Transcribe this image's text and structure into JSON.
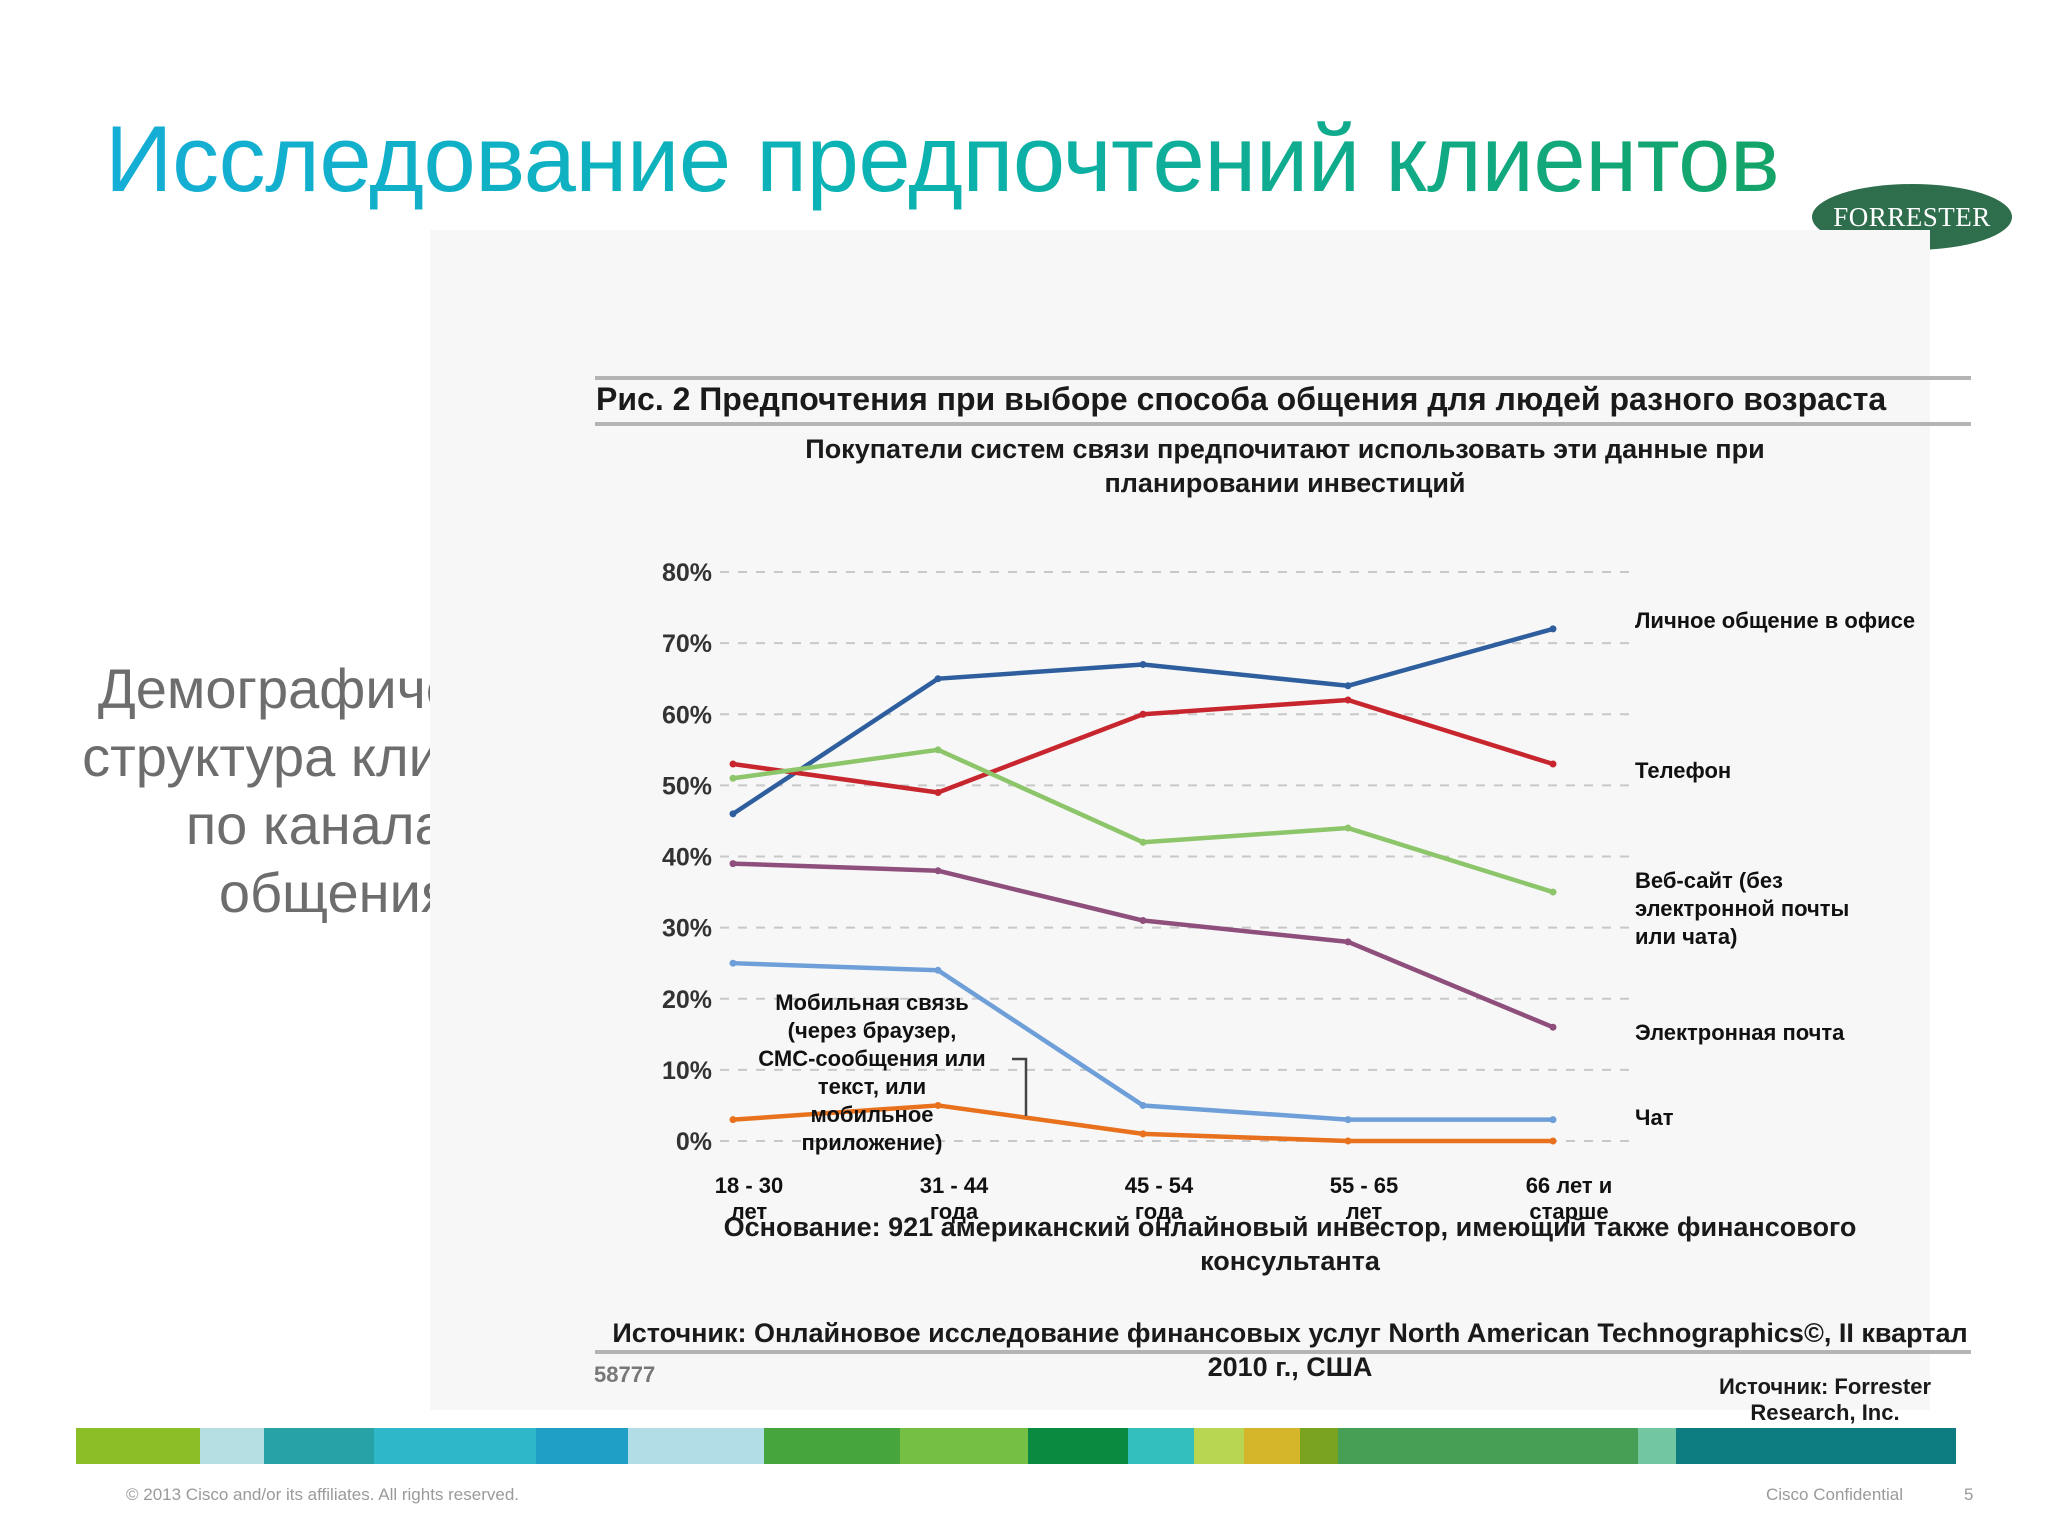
{
  "slide": {
    "title": "Исследование предпочтений клиентов",
    "side_caption": "Демографическая структура клиентов по каналам общения",
    "logo_text": "FORRESTER",
    "footer_copyright": "© 2013 Cisco and/or its affiliates. All rights reserved.",
    "footer_confidential": "Cisco Confidential",
    "page_number": "5"
  },
  "figure": {
    "title": "Рис. 2 Предпочтения при выборе способа общения для людей разного возраста",
    "subtitle": "Покупатели систем связи предпочитают использовать эти данные при планировании инвестиций",
    "basis": "Основание: 921 американский онлайновый инвестор, имеющий также финансового консультанта",
    "source": "Источник: Онлайновое исследование финансовых услуг North American Technographics©, II квартал 2010 г., США",
    "id": "58777",
    "credit": "Источник: Forrester Research, Inc."
  },
  "chart_data": {
    "type": "line",
    "x_categories": [
      [
        "18 - 30",
        "лет"
      ],
      [
        "31 - 44",
        "года"
      ],
      [
        "45 - 54",
        "года"
      ],
      [
        "55 - 65",
        "лет"
      ],
      [
        "66 лет и",
        "старше"
      ]
    ],
    "ylim": [
      0,
      80
    ],
    "y_ticks": [
      "0%",
      "10%",
      "20%",
      "30%",
      "40%",
      "50%",
      "60%",
      "70%",
      "80%"
    ],
    "grid": "dashed horizontal",
    "series": [
      {
        "name": "Личное общение в офисе",
        "label_lines": [
          "Личное общение в офисе"
        ],
        "color": "#2e5e9e",
        "values": [
          46,
          65,
          67,
          64,
          72
        ]
      },
      {
        "name": "Телефон",
        "label_lines": [
          "Телефон"
        ],
        "color": "#c8262e",
        "values": [
          53,
          49,
          60,
          62,
          53
        ]
      },
      {
        "name": "Веб-сайт (без электронной почты или чата)",
        "label_lines": [
          "Веб-сайт (без",
          "электронной почты",
          "или чата)"
        ],
        "color": "#8cc56a",
        "values": [
          51,
          55,
          42,
          44,
          35
        ]
      },
      {
        "name": "Электронная почта",
        "label_lines": [
          "Электронная почта"
        ],
        "color": "#8e4f7c",
        "values": [
          39,
          38,
          31,
          28,
          16
        ]
      },
      {
        "name": "Чат",
        "label_lines": [
          "Чат"
        ],
        "color": "#6e9fd8",
        "values": [
          25,
          24,
          5,
          3,
          3
        ]
      },
      {
        "name": "Мобильная связь (через браузер, СМС-сообщения или текст, или мобильное приложение)",
        "label_lines": [
          "Мобильная связь",
          "(через браузер,",
          "СМС-сообщения или",
          "текст, или",
          "мобильное",
          "приложение)"
        ],
        "color": "#e8711e",
        "values": [
          3,
          5,
          1,
          0,
          0
        ]
      }
    ]
  },
  "colors": {
    "band": [
      "#8cbf26",
      "#b6dfe3",
      "#27a3a8",
      "#2eb7c8",
      "#1f9ec6",
      "#b0dde6",
      "#46a53c",
      "#74bf44",
      "#0a8a41",
      "#34bfbf",
      "#b9d652",
      "#d5b62a",
      "#7aa41f",
      "#479f55",
      "#72c7a0",
      "#0e7d82"
    ]
  }
}
